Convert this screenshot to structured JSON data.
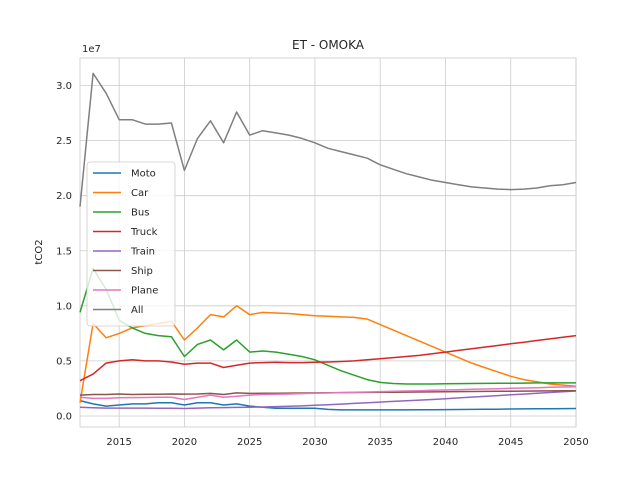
{
  "chart_data": {
    "type": "line",
    "title": "ET - OMOKA",
    "xlabel": "",
    "ylabel": "tCO2",
    "y_offset_label": "1e7",
    "y_scale": 10000000,
    "xlim": [
      2012,
      2050
    ],
    "ylim": [
      -0.1,
      3.25
    ],
    "xticks": [
      2015,
      2020,
      2025,
      2030,
      2035,
      2040,
      2045,
      2050
    ],
    "yticks": [
      0.0,
      0.5,
      1.0,
      1.5,
      2.0,
      2.5,
      3.0
    ],
    "ytick_labels": [
      "0.0",
      "0.5",
      "1.0",
      "1.5",
      "2.0",
      "2.5",
      "3.0"
    ],
    "grid": true,
    "legend_position": "center-left",
    "x": [
      2012,
      2013,
      2014,
      2015,
      2016,
      2017,
      2018,
      2019,
      2020,
      2021,
      2022,
      2023,
      2024,
      2025,
      2026,
      2027,
      2028,
      2029,
      2030,
      2031,
      2032,
      2033,
      2034,
      2035,
      2036,
      2037,
      2038,
      2039,
      2040,
      2041,
      2042,
      2043,
      2044,
      2045,
      2046,
      2047,
      2048,
      2049,
      2050
    ],
    "series": [
      {
        "name": "Moto",
        "color": "#1f77b4",
        "values": [
          0.14,
          0.11,
          0.09,
          0.1,
          0.11,
          0.11,
          0.12,
          0.12,
          0.1,
          0.12,
          0.12,
          0.1,
          0.11,
          0.09,
          0.08,
          0.07,
          0.07,
          0.07,
          0.07,
          0.06,
          0.055,
          0.055,
          0.055,
          0.055,
          0.055,
          0.055,
          0.056,
          0.057,
          0.058,
          0.059,
          0.06,
          0.061,
          0.062,
          0.063,
          0.064,
          0.065,
          0.066,
          0.067,
          0.068
        ]
      },
      {
        "name": "Car",
        "color": "#ff7f0e",
        "values": [
          0.12,
          0.84,
          0.71,
          0.75,
          0.8,
          0.82,
          0.84,
          0.86,
          0.69,
          0.8,
          0.92,
          0.9,
          1.0,
          0.92,
          0.94,
          0.935,
          0.93,
          0.92,
          0.91,
          0.905,
          0.9,
          0.895,
          0.88,
          0.83,
          0.78,
          0.73,
          0.68,
          0.63,
          0.58,
          0.53,
          0.48,
          0.44,
          0.4,
          0.36,
          0.33,
          0.31,
          0.29,
          0.28,
          0.27
        ]
      },
      {
        "name": "Bus",
        "color": "#2ca02c",
        "values": [
          0.94,
          1.34,
          1.15,
          0.87,
          0.8,
          0.75,
          0.73,
          0.72,
          0.54,
          0.65,
          0.69,
          0.6,
          0.69,
          0.58,
          0.59,
          0.58,
          0.56,
          0.54,
          0.51,
          0.46,
          0.41,
          0.37,
          0.33,
          0.305,
          0.295,
          0.29,
          0.29,
          0.29,
          0.292,
          0.294,
          0.295,
          0.296,
          0.297,
          0.298,
          0.299,
          0.3,
          0.3,
          0.3,
          0.3
        ]
      },
      {
        "name": "Truck",
        "color": "#d62728",
        "values": [
          0.32,
          0.38,
          0.48,
          0.5,
          0.51,
          0.5,
          0.5,
          0.49,
          0.47,
          0.48,
          0.48,
          0.44,
          0.46,
          0.48,
          0.485,
          0.487,
          0.485,
          0.485,
          0.487,
          0.49,
          0.495,
          0.5,
          0.51,
          0.52,
          0.53,
          0.54,
          0.55,
          0.565,
          0.58,
          0.595,
          0.61,
          0.625,
          0.64,
          0.655,
          0.67,
          0.685,
          0.7,
          0.715,
          0.73
        ]
      },
      {
        "name": "Train",
        "color": "#9467bd",
        "values": [
          0.08,
          0.075,
          0.072,
          0.072,
          0.072,
          0.072,
          0.071,
          0.071,
          0.068,
          0.072,
          0.075,
          0.076,
          0.078,
          0.08,
          0.082,
          0.085,
          0.088,
          0.092,
          0.097,
          0.102,
          0.108,
          0.114,
          0.12,
          0.126,
          0.132,
          0.138,
          0.144,
          0.15,
          0.157,
          0.164,
          0.171,
          0.178,
          0.185,
          0.192,
          0.199,
          0.206,
          0.213,
          0.22,
          0.227
        ]
      },
      {
        "name": "Ship",
        "color": "#8c564b",
        "values": [
          0.19,
          0.195,
          0.195,
          0.2,
          0.195,
          0.197,
          0.198,
          0.2,
          0.199,
          0.2,
          0.205,
          0.195,
          0.21,
          0.205,
          0.206,
          0.207,
          0.208,
          0.209,
          0.21,
          0.211,
          0.212,
          0.213,
          0.214,
          0.215,
          0.216,
          0.217,
          0.218,
          0.219,
          0.22,
          0.221,
          0.222,
          0.223,
          0.224,
          0.225,
          0.226,
          0.227,
          0.228,
          0.229,
          0.23
        ]
      },
      {
        "name": "Plane",
        "color": "#e377c2",
        "values": [
          0.17,
          0.16,
          0.16,
          0.165,
          0.167,
          0.168,
          0.17,
          0.17,
          0.15,
          0.17,
          0.19,
          0.17,
          0.18,
          0.19,
          0.195,
          0.198,
          0.2,
          0.203,
          0.206,
          0.209,
          0.212,
          0.215,
          0.218,
          0.221,
          0.224,
          0.227,
          0.23,
          0.233,
          0.236,
          0.239,
          0.242,
          0.245,
          0.248,
          0.251,
          0.254,
          0.257,
          0.26,
          0.263,
          0.266
        ]
      },
      {
        "name": "All",
        "color": "#7f7f7f",
        "values": [
          1.9,
          3.11,
          2.93,
          2.69,
          2.69,
          2.65,
          2.65,
          2.66,
          2.23,
          2.52,
          2.68,
          2.48,
          2.76,
          2.55,
          2.59,
          2.57,
          2.55,
          2.52,
          2.48,
          2.43,
          2.4,
          2.37,
          2.34,
          2.28,
          2.24,
          2.2,
          2.17,
          2.14,
          2.12,
          2.1,
          2.08,
          2.07,
          2.06,
          2.055,
          2.06,
          2.07,
          2.09,
          2.1,
          2.12
        ]
      }
    ]
  }
}
